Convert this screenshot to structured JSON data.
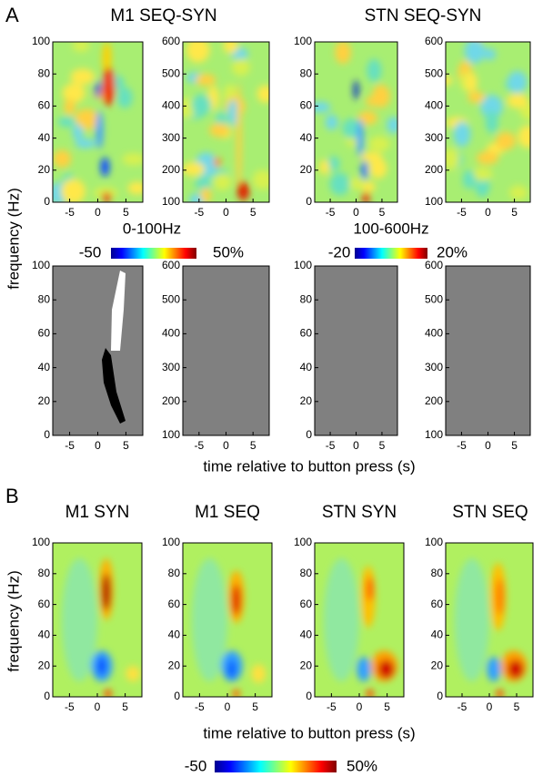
{
  "panel_a": {
    "letter": "A",
    "titles": [
      "M1 SEQ-SYN",
      "STN SEQ-SYN"
    ],
    "y_label": "frequency (Hz)",
    "x_label": "time relative to button press (s)",
    "colorbars": [
      {
        "range_label": "0-100Hz",
        "min": "-50",
        "max": "50%"
      },
      {
        "range_label": "100-600Hz",
        "min": "-20",
        "max": "20%"
      }
    ]
  },
  "panel_b": {
    "letter": "B",
    "titles": [
      "M1 SYN",
      "M1 SEQ",
      "STN SYN",
      "STN SEQ"
    ],
    "y_label": "frequency (Hz)",
    "x_label": "time relative to button press (s)",
    "colorbar": {
      "min": "-50",
      "max": "50%"
    }
  },
  "axes": {
    "yticks_low": [
      "0",
      "20",
      "40",
      "60",
      "80",
      "100"
    ],
    "yticks_high": [
      "100",
      "200",
      "300",
      "400",
      "500",
      "600"
    ],
    "xticks": [
      "-5",
      "0",
      "5"
    ]
  }
}
